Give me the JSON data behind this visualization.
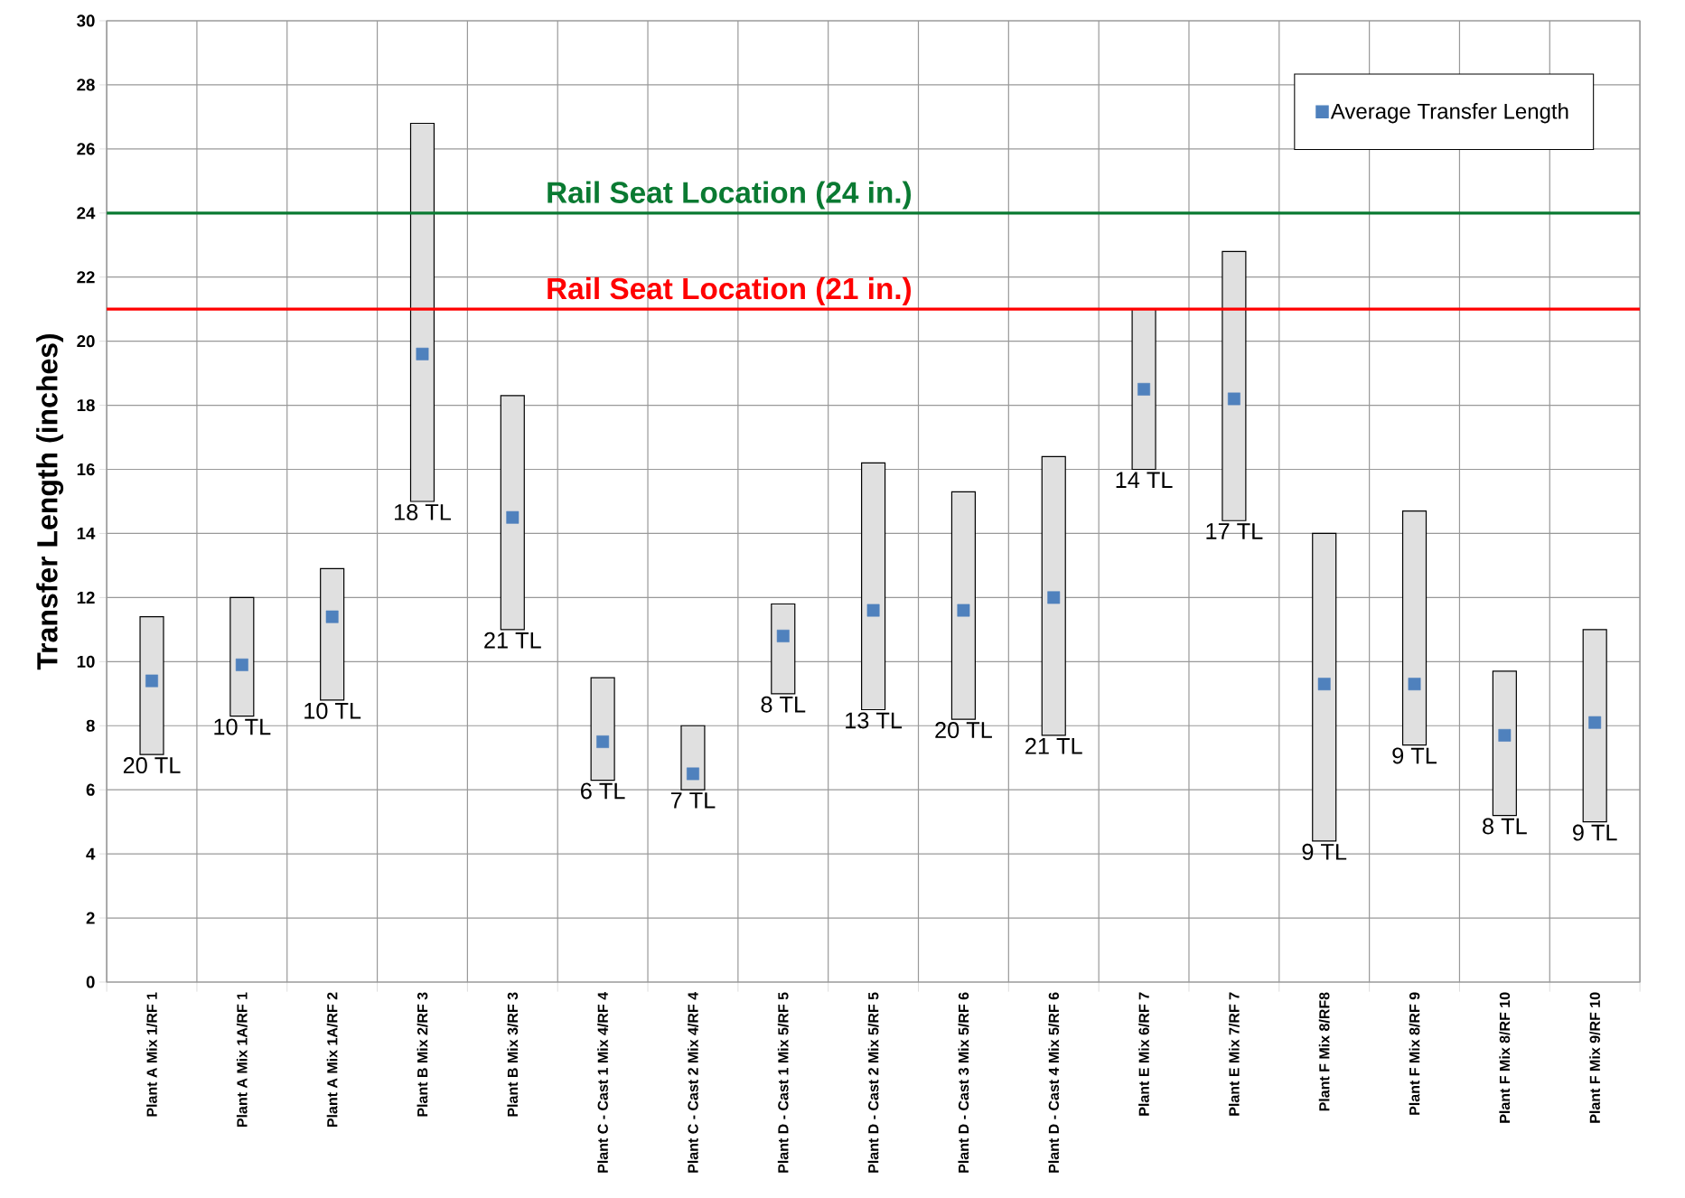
{
  "chart_data": {
    "type": "bar",
    "ylabel": "Transfer Length (inches)",
    "categories": [
      "Plant A Mix 1/RF 1",
      "Plant A Mix 1A/RF 1",
      "Plant A Mix 1A/RF 2",
      "Plant B Mix 2/RF 3",
      "Plant B Mix 3/RF 3",
      "Plant C - Cast 1 Mix 4/RF 4",
      "Plant C - Cast 2 Mix 4/RF 4",
      "Plant D - Cast 1 Mix 5/RF 5",
      "Plant D - Cast 2 Mix 5/RF 5",
      "Plant D - Cast 3 Mix 5/RF 6",
      "Plant D - Cast 4 Mix 5/RF 6",
      "Plant E Mix 6/RF 7",
      "Plant E Mix 7/RF 7",
      "Plant F Mix 8/RF8",
      "Plant F Mix 8/RF 9",
      "Plant F Mix 8/RF 10",
      "Plant F Mix 9/RF 10"
    ],
    "ylim": [
      0,
      30
    ],
    "yticks": [
      0,
      2,
      4,
      6,
      8,
      10,
      12,
      14,
      16,
      18,
      20,
      22,
      24,
      26,
      28,
      30
    ],
    "grid": true,
    "legend": "top right",
    "series": [
      {
        "color": "#e0e0e0",
        "base": [
          7.1,
          8.3,
          8.8,
          15.0,
          11.0,
          6.3,
          6.0,
          9.0,
          8.5,
          8.2,
          7.7,
          16.0,
          14.4,
          4.4,
          7.4,
          5.2,
          5.0
        ],
        "values": [
          4.3,
          3.7,
          4.1,
          11.8,
          7.3,
          3.2,
          2.0,
          2.8,
          7.7,
          7.1,
          8.7,
          5.0,
          8.4,
          9.6,
          7.3,
          4.5,
          6.0
        ]
      },
      {
        "type": "scatter",
        "name": "Average Transfer Length",
        "color": "#4f81bd",
        "marker": "square",
        "values": [
          9.4,
          9.9,
          11.4,
          19.6,
          14.5,
          7.5,
          6.5,
          10.8,
          11.6,
          11.6,
          12.0,
          18.5,
          18.2,
          9.3,
          9.3,
          7.7,
          8.1
        ]
      }
    ],
    "annotations": [
      {
        "text": "20 TL",
        "x": "Plant A Mix 1/RF 1",
        "y": 7.1
      },
      {
        "text": "10 TL",
        "x": "Plant A Mix 1A/RF 1",
        "y": 8.3
      },
      {
        "text": "10 TL",
        "x": "Plant A Mix 1A/RF 2",
        "y": 8.8
      },
      {
        "text": "18 TL",
        "x": "Plant B Mix 2/RF 3",
        "y": 15.0
      },
      {
        "text": "21 TL",
        "x": "Plant B Mix 3/RF 3",
        "y": 11.0
      },
      {
        "text": "6 TL",
        "x": "Plant C - Cast 1 Mix 4/RF 4",
        "y": 6.3
      },
      {
        "text": "7 TL",
        "x": "Plant C - Cast 2 Mix 4/RF 4",
        "y": 6.0
      },
      {
        "text": "8 TL",
        "x": "Plant D - Cast 1 Mix 5/RF 5",
        "y": 9.0
      },
      {
        "text": "13 TL",
        "x": "Plant D - Cast 2 Mix 5/RF 5",
        "y": 8.5
      },
      {
        "text": "20 TL",
        "x": "Plant D - Cast 3 Mix 5/RF 6",
        "y": 8.2
      },
      {
        "text": "21 TL",
        "x": "Plant D - Cast 4 Mix 5/RF 6",
        "y": 7.7
      },
      {
        "text": "14 TL",
        "x": "Plant E Mix 6/RF 7",
        "y": 16.0
      },
      {
        "text": "17 TL",
        "x": "Plant E Mix 7/RF 7",
        "y": 14.4
      },
      {
        "text": "9 TL",
        "x": "Plant F Mix 8/RF8",
        "y": 4.4
      },
      {
        "text": "9 TL",
        "x": "Plant F Mix 8/RF 9",
        "y": 7.4
      },
      {
        "text": "8 TL",
        "x": "Plant F Mix 8/RF 10",
        "y": 5.2
      },
      {
        "text": "9 TL",
        "x": "Plant F Mix 9/RF 10",
        "y": 5.0
      }
    ],
    "ref_lines": [
      {
        "axis": "y",
        "value": 24,
        "label": "Rail Seat Location (24 in.)",
        "color": "#0a7a32"
      },
      {
        "axis": "y",
        "value": 21,
        "label": "Rail Seat Location (21 in.)",
        "color": "#ff0000"
      }
    ]
  }
}
